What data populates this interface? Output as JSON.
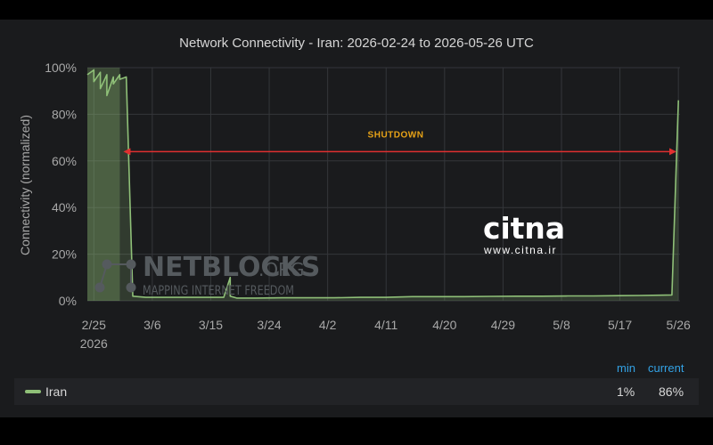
{
  "chart_data": {
    "type": "area",
    "title": "Network Connectivity - Iran: 2026-02-24 to 2026-05-26 UTC",
    "ylabel": "Connectivity (normalized)",
    "ylim": [
      0,
      100
    ],
    "yticks": [
      "0%",
      "20%",
      "40%",
      "60%",
      "80%",
      "100%"
    ],
    "xticks": [
      "2/25",
      "3/6",
      "3/15",
      "3/24",
      "4/2",
      "4/11",
      "4/20",
      "4/29",
      "5/8",
      "5/17",
      "5/26"
    ],
    "xtick_year": "2026",
    "grid": true,
    "series": [
      {
        "name": "Iran",
        "color": "#8fc078",
        "x": [
          "2026-02-24",
          "2026-02-25",
          "2026-02-25",
          "2026-02-26",
          "2026-02-26",
          "2026-02-27",
          "2026-02-27",
          "2026-02-28",
          "2026-02-28",
          "2026-03-01",
          "2026-03-01",
          "2026-03-02",
          "2026-03-03",
          "2026-03-05",
          "2026-03-08",
          "2026-03-11",
          "2026-03-14",
          "2026-03-17",
          "2026-03-18",
          "2026-03-18",
          "2026-03-19",
          "2026-03-22",
          "2026-03-26",
          "2026-03-30",
          "2026-04-03",
          "2026-04-07",
          "2026-04-11",
          "2026-04-15",
          "2026-04-19",
          "2026-04-23",
          "2026-04-27",
          "2026-05-01",
          "2026-05-05",
          "2026-05-09",
          "2026-05-13",
          "2026-05-17",
          "2026-05-20",
          "2026-05-23",
          "2026-05-25",
          "2026-05-26"
        ],
        "y": [
          97,
          99,
          94,
          98,
          91,
          97,
          88,
          96,
          93,
          97,
          95,
          96,
          2,
          1.5,
          1.5,
          1.5,
          1.5,
          1.5,
          10,
          2,
          1.2,
          1.2,
          1.3,
          1.3,
          1.3,
          1.5,
          1.5,
          1.8,
          1.8,
          1.8,
          1.9,
          2.0,
          2.0,
          2.1,
          2.1,
          2.2,
          2.3,
          2.4,
          2.5,
          86
        ]
      }
    ],
    "annotations": [
      {
        "text": "SHUTDOWN",
        "from": "2026-03-01",
        "to": "2026-05-26",
        "y": 64,
        "color": "#e03030",
        "text_color": "#e8a317"
      }
    ],
    "shaded_region": {
      "from": "2026-02-24",
      "to": "2026-03-01",
      "color": "#8fc078"
    },
    "legend": {
      "placement": "bottom",
      "headers": {
        "min": "min",
        "current": "current"
      },
      "entries": [
        {
          "name": "Iran",
          "min": "1%",
          "current": "86%"
        }
      ]
    }
  },
  "watermark": {
    "brand": "NETBLOCKS",
    "brand_suffix": ".ORG",
    "tagline": "MAPPING INTERNET FREEDOM"
  },
  "logo": {
    "name": "citna",
    "url": "www.citna.ir"
  }
}
